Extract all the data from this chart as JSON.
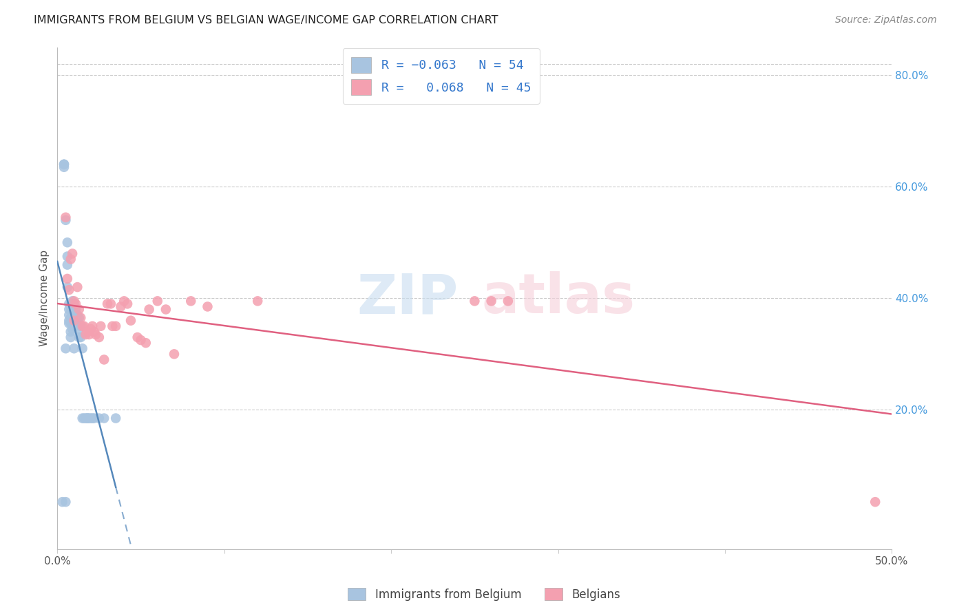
{
  "title": "IMMIGRANTS FROM BELGIUM VS BELGIAN WAGE/INCOME GAP CORRELATION CHART",
  "source": "Source: ZipAtlas.com",
  "ylabel": "Wage/Income Gap",
  "xlabel": "",
  "xlim": [
    0.0,
    0.5
  ],
  "ylim": [
    -0.05,
    0.85
  ],
  "xtick_pos": [
    0.0,
    0.1,
    0.2,
    0.3,
    0.4,
    0.5
  ],
  "xtick_labels": [
    "0.0%",
    "",
    "",
    "",
    "",
    "50.0%"
  ],
  "ytick_vals_right": [
    0.2,
    0.4,
    0.6,
    0.8
  ],
  "ytick_labels_right": [
    "20.0%",
    "40.0%",
    "60.0%",
    "80.0%"
  ],
  "r_immigrants": -0.063,
  "n_immigrants": 54,
  "r_belgians": 0.068,
  "n_belgians": 45,
  "legend_label_1": "Immigrants from Belgium",
  "legend_label_2": "Belgians",
  "color_immigrants": "#a8c4e0",
  "color_belgians": "#f4a0b0",
  "trendline_immigrants_color": "#5588bb",
  "trendline_belgians_color": "#e06080",
  "background_color": "#ffffff",
  "grid_color": "#cccccc",
  "immigrants_x": [
    0.003,
    0.004,
    0.004,
    0.004,
    0.005,
    0.005,
    0.005,
    0.006,
    0.006,
    0.006,
    0.006,
    0.007,
    0.007,
    0.007,
    0.007,
    0.007,
    0.008,
    0.008,
    0.008,
    0.008,
    0.008,
    0.008,
    0.009,
    0.009,
    0.009,
    0.009,
    0.009,
    0.01,
    0.01,
    0.01,
    0.01,
    0.011,
    0.011,
    0.011,
    0.012,
    0.012,
    0.013,
    0.013,
    0.013,
    0.014,
    0.014,
    0.015,
    0.015,
    0.016,
    0.017,
    0.018,
    0.018,
    0.019,
    0.02,
    0.021,
    0.022,
    0.025,
    0.028,
    0.035
  ],
  "immigrants_y": [
    0.035,
    0.64,
    0.635,
    0.64,
    0.035,
    0.54,
    0.31,
    0.475,
    0.5,
    0.46,
    0.42,
    0.36,
    0.37,
    0.355,
    0.39,
    0.38,
    0.34,
    0.33,
    0.365,
    0.355,
    0.38,
    0.39,
    0.345,
    0.395,
    0.355,
    0.38,
    0.365,
    0.39,
    0.365,
    0.31,
    0.35,
    0.37,
    0.36,
    0.38,
    0.36,
    0.37,
    0.365,
    0.33,
    0.345,
    0.35,
    0.33,
    0.31,
    0.185,
    0.185,
    0.185,
    0.185,
    0.185,
    0.185,
    0.185,
    0.185,
    0.185,
    0.185,
    0.185,
    0.185
  ],
  "belgians_x": [
    0.005,
    0.006,
    0.007,
    0.008,
    0.009,
    0.01,
    0.01,
    0.011,
    0.012,
    0.013,
    0.014,
    0.015,
    0.016,
    0.017,
    0.018,
    0.019,
    0.02,
    0.021,
    0.022,
    0.023,
    0.025,
    0.026,
    0.028,
    0.03,
    0.032,
    0.033,
    0.035,
    0.038,
    0.04,
    0.042,
    0.044,
    0.048,
    0.05,
    0.053,
    0.055,
    0.06,
    0.065,
    0.07,
    0.08,
    0.09,
    0.12,
    0.25,
    0.26,
    0.27,
    0.49
  ],
  "belgians_y": [
    0.545,
    0.435,
    0.415,
    0.47,
    0.48,
    0.395,
    0.36,
    0.39,
    0.42,
    0.38,
    0.365,
    0.35,
    0.35,
    0.335,
    0.34,
    0.335,
    0.345,
    0.35,
    0.34,
    0.335,
    0.33,
    0.35,
    0.29,
    0.39,
    0.39,
    0.35,
    0.35,
    0.385,
    0.395,
    0.39,
    0.36,
    0.33,
    0.325,
    0.32,
    0.38,
    0.395,
    0.38,
    0.3,
    0.395,
    0.385,
    0.395,
    0.395,
    0.395,
    0.395,
    0.035
  ]
}
